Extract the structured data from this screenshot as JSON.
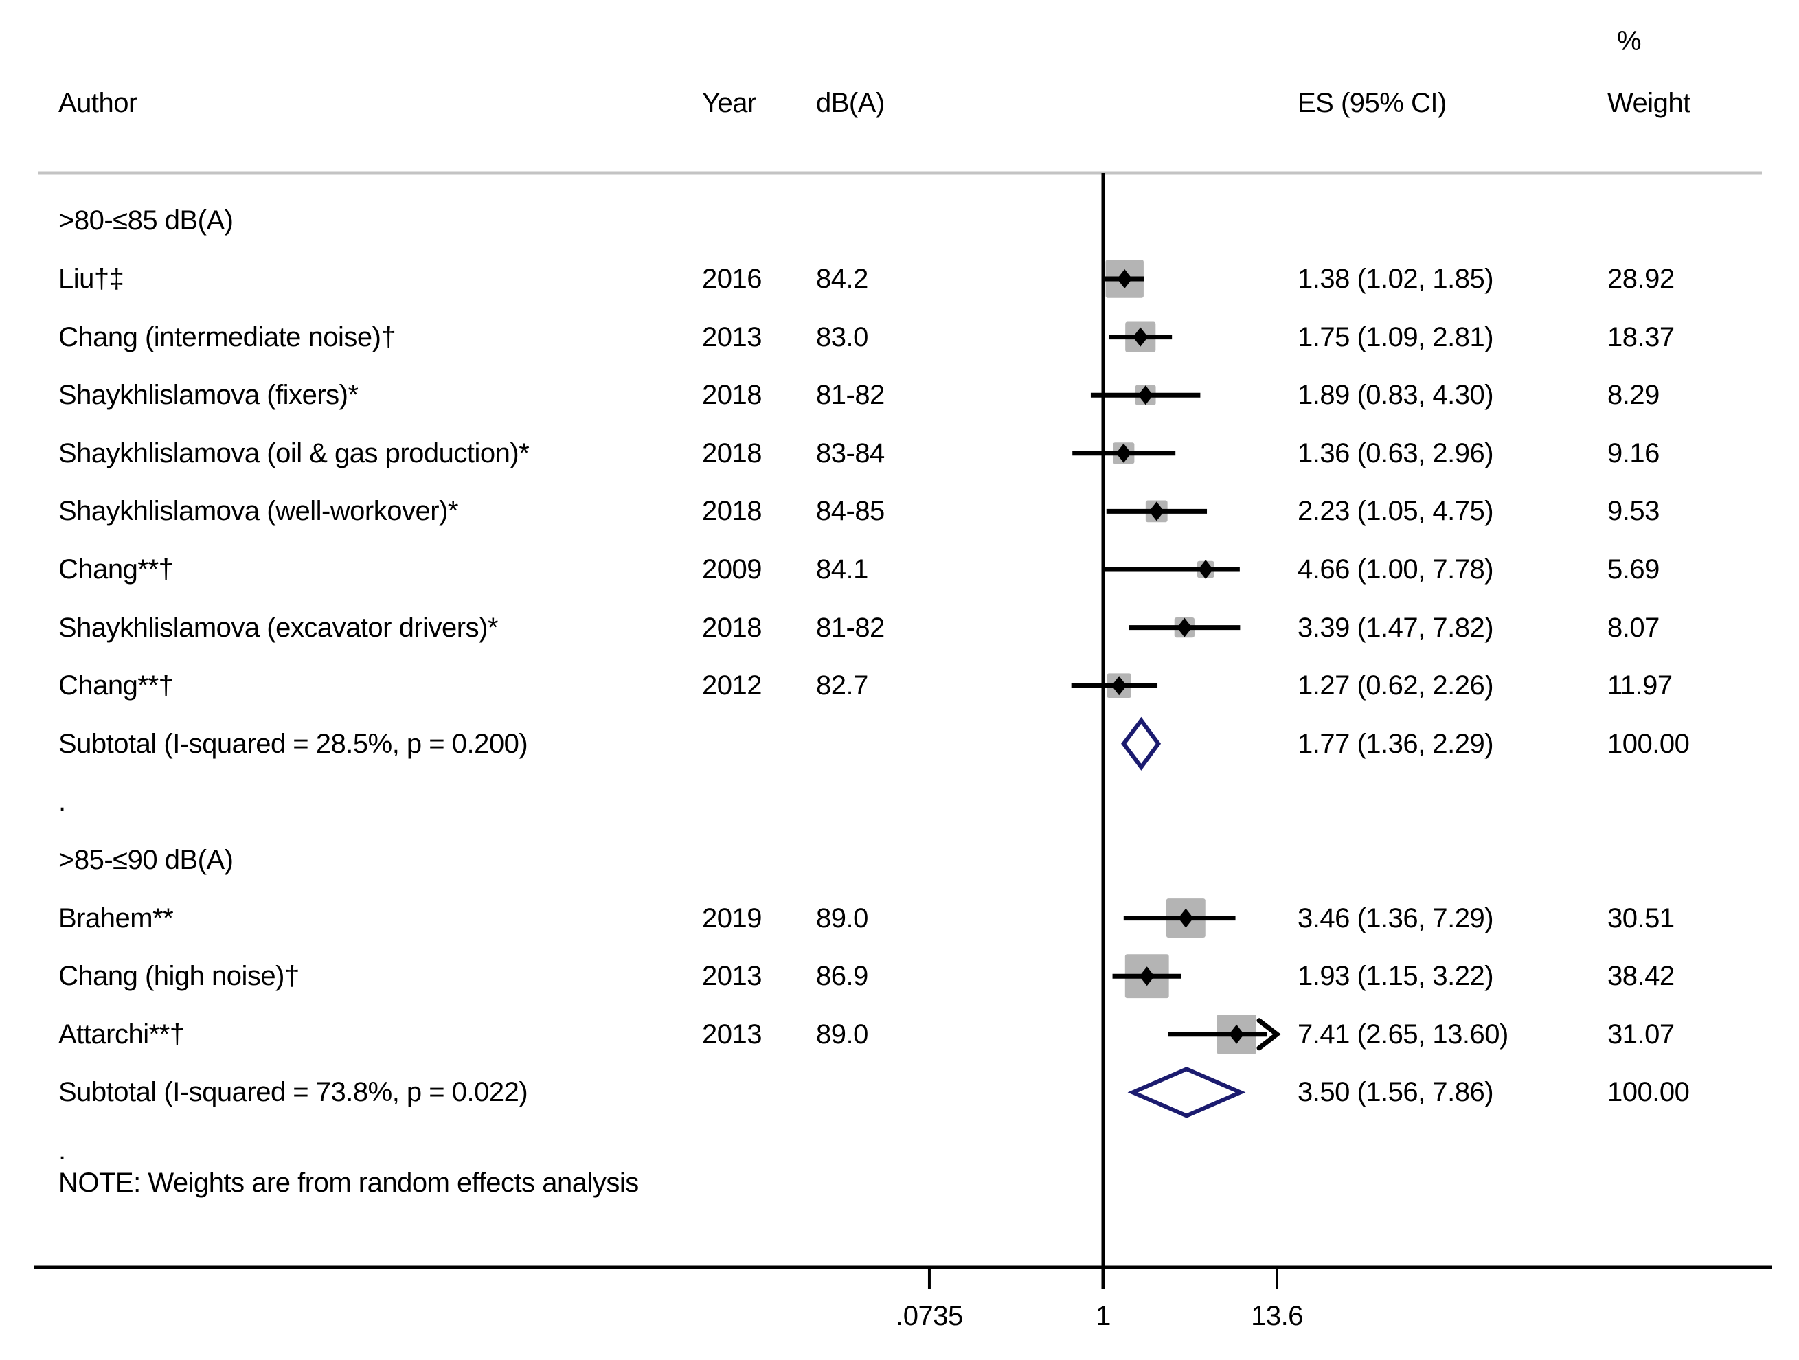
{
  "chart_data": {
    "type": "forest",
    "title": "",
    "columns": {
      "author": "Author",
      "year": "Year",
      "db": "dB(A)",
      "es": "ES (95% CI)",
      "pct": "%",
      "weight": "Weight"
    },
    "note": "NOTE: Weights are from random effects analysis",
    "x_axis": {
      "scale": "log",
      "ref_value": 1,
      "ticks": [
        {
          "label": ".0735",
          "value": 0.0735
        },
        {
          "label": "1",
          "value": 1
        },
        {
          "label": "13.6",
          "value": 13.6
        }
      ]
    },
    "colors": {
      "square": "#b4b4b4",
      "diamond_outline": "#1b1b6f",
      "line": "#000000",
      "top_rule": "#c3c3c3"
    },
    "groups": [
      {
        "label": ">80-≤85 dB(A)",
        "spacer": ".",
        "studies": [
          {
            "author": "Liu†‡",
            "year": "2016",
            "db": "84.2",
            "es": 1.38,
            "lo": 1.02,
            "hi": 1.85,
            "es_text": "1.38 (1.02, 1.85)",
            "weight": 28.92,
            "weight_text": "28.92"
          },
          {
            "author": "Chang (intermediate noise)†",
            "year": "2013",
            "db": "83.0",
            "es": 1.75,
            "lo": 1.09,
            "hi": 2.81,
            "es_text": "1.75 (1.09, 2.81)",
            "weight": 18.37,
            "weight_text": "18.37"
          },
          {
            "author": "Shaykhlislamova (fixers)*",
            "year": "2018",
            "db": "81-82",
            "es": 1.89,
            "lo": 0.83,
            "hi": 4.3,
            "es_text": "1.89 (0.83, 4.30)",
            "weight": 8.29,
            "weight_text": "8.29"
          },
          {
            "author": "Shaykhlislamova (oil & gas production)*",
            "year": "2018",
            "db": "83-84",
            "es": 1.36,
            "lo": 0.63,
            "hi": 2.96,
            "es_text": "1.36 (0.63, 2.96)",
            "weight": 9.16,
            "weight_text": "9.16"
          },
          {
            "author": "Shaykhlislamova (well-workover)*",
            "year": "2018",
            "db": "84-85",
            "es": 2.23,
            "lo": 1.05,
            "hi": 4.75,
            "es_text": "2.23 (1.05, 4.75)",
            "weight": 9.53,
            "weight_text": "9.53"
          },
          {
            "author": "Chang**†",
            "year": "2009",
            "db": "84.1",
            "es": 4.66,
            "lo": 1.0,
            "hi": 7.78,
            "es_text": "4.66 (1.00, 7.78)",
            "weight": 5.69,
            "weight_text": "5.69"
          },
          {
            "author": "Shaykhlislamova (excavator drivers)*",
            "year": "2018",
            "db": "81-82",
            "es": 3.39,
            "lo": 1.47,
            "hi": 7.82,
            "es_text": "3.39 (1.47, 7.82)",
            "weight": 8.07,
            "weight_text": "8.07"
          },
          {
            "author": "Chang**†",
            "year": "2012",
            "db": "82.7",
            "es": 1.27,
            "lo": 0.62,
            "hi": 2.26,
            "es_text": "1.27 (0.62, 2.26)",
            "weight": 11.97,
            "weight_text": "11.97"
          }
        ],
        "subtotal": {
          "label": "Subtotal  (I-squared = 28.5%, p = 0.200)",
          "es": 1.77,
          "lo": 1.36,
          "hi": 2.29,
          "es_text": "1.77 (1.36, 2.29)",
          "weight_text": "100.00"
        }
      },
      {
        "label": ">85-≤90 dB(A)",
        "spacer": ".",
        "studies": [
          {
            "author": "Brahem**",
            "year": "2019",
            "db": "89.0",
            "es": 3.46,
            "lo": 1.36,
            "hi": 7.29,
            "es_text": "3.46 (1.36, 7.29)",
            "weight": 30.51,
            "weight_text": "30.51"
          },
          {
            "author": "Chang (high noise)†",
            "year": "2013",
            "db": "86.9",
            "es": 1.93,
            "lo": 1.15,
            "hi": 3.22,
            "es_text": "1.93 (1.15, 3.22)",
            "weight": 38.42,
            "weight_text": "38.42"
          },
          {
            "author": "Attarchi**†",
            "year": "2013",
            "db": "89.0",
            "es": 7.41,
            "lo": 2.65,
            "hi": 13.6,
            "es_text": "7.41 (2.65, 13.60)",
            "weight": 31.07,
            "weight_text": "31.07",
            "clip_hi": true
          }
        ],
        "subtotal": {
          "label": "Subtotal  (I-squared = 73.8%, p = 0.022)",
          "es": 3.5,
          "lo": 1.56,
          "hi": 7.86,
          "es_text": "3.50 (1.56, 7.86)",
          "weight_text": "100.00"
        }
      }
    ]
  }
}
